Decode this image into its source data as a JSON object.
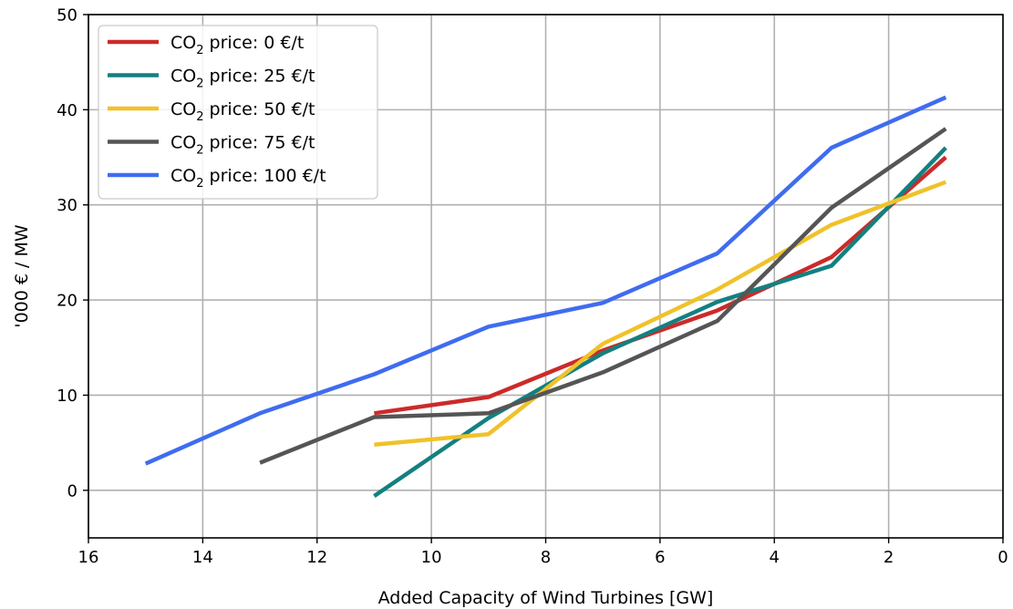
{
  "chart_data": {
    "type": "line",
    "title": "",
    "xlabel": "Added Capacity of Wind Turbines [GW]",
    "ylabel": "'000 € / MW",
    "xlim": [
      16,
      0
    ],
    "ylim": [
      -5,
      50
    ],
    "x_reversed": true,
    "xticks": [
      16,
      14,
      12,
      10,
      8,
      6,
      4,
      2,
      0
    ],
    "yticks": [
      0,
      10,
      20,
      30,
      40,
      50
    ],
    "grid": true,
    "legend_position": "top-left",
    "series": [
      {
        "name_prefix": "CO",
        "name_sub": "2",
        "name_suffix": " price: 0 €/t",
        "color": "#cc2a2a",
        "points": [
          [
            11,
            8.1
          ],
          [
            9,
            9.8
          ],
          [
            7,
            14.7
          ],
          [
            5,
            18.9
          ],
          [
            3,
            24.5
          ],
          [
            1,
            35.0
          ]
        ]
      },
      {
        "name_prefix": "CO",
        "name_sub": "2",
        "name_suffix": " price: 25 €/t",
        "color": "#138080",
        "points": [
          [
            11,
            -0.6
          ],
          [
            9,
            7.6
          ],
          [
            7,
            14.4
          ],
          [
            5,
            19.8
          ],
          [
            3,
            23.6
          ],
          [
            1,
            36.0
          ]
        ]
      },
      {
        "name_prefix": "CO",
        "name_sub": "2",
        "name_suffix": " price: 50 €/t",
        "color": "#f0c22a",
        "points": [
          [
            11,
            4.8
          ],
          [
            9,
            5.9
          ],
          [
            7,
            15.4
          ],
          [
            5,
            21.1
          ],
          [
            3,
            27.9
          ],
          [
            1,
            32.4
          ]
        ]
      },
      {
        "name_prefix": "CO",
        "name_sub": "2",
        "name_suffix": " price: 75 €/t",
        "color": "#555555",
        "points": [
          [
            13,
            2.9
          ],
          [
            11,
            7.7
          ],
          [
            9,
            8.1
          ],
          [
            7,
            12.4
          ],
          [
            5,
            17.8
          ],
          [
            3,
            29.7
          ],
          [
            1,
            38.0
          ]
        ]
      },
      {
        "name_prefix": "CO",
        "name_sub": "2",
        "name_suffix": " price: 100 €/t",
        "color": "#3f6cf0",
        "points": [
          [
            15,
            2.8
          ],
          [
            13,
            8.1
          ],
          [
            11,
            12.2
          ],
          [
            9,
            17.2
          ],
          [
            7,
            19.7
          ],
          [
            5,
            24.9
          ],
          [
            3,
            36.0
          ],
          [
            1,
            41.3
          ]
        ]
      }
    ]
  }
}
